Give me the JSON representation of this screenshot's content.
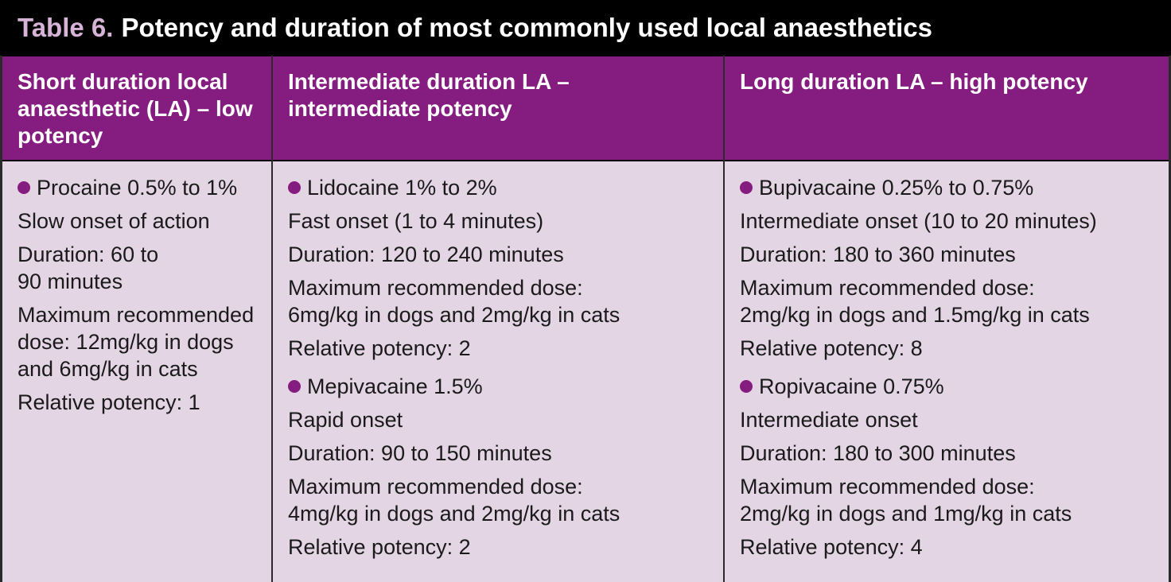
{
  "table": {
    "label": "Table 6.",
    "title": "Potency and duration of most commonly used local anaesthetics",
    "headers": [
      "Short duration local anaesthetic (LA) – low potency",
      "Intermediate duration LA – intermediate potency",
      "Long duration LA – high potency"
    ],
    "short": {
      "drug": "Procaine 0.5% to 1%",
      "onset": "Slow onset of action",
      "duration": "Duration: 60 to 90 minutes",
      "dose": "Maximum recommended dose: 12mg/kg in dogs and 6mg/kg in cats",
      "potency": "Relative potency: 1"
    },
    "intermediate": [
      {
        "drug": "Lidocaine 1% to 2%",
        "onset": "Fast onset (1 to 4 minutes)",
        "duration": "Duration: 120 to 240 minutes",
        "dose_label": "Maximum recommended dose:",
        "dose_value": "6mg/kg in dogs and 2mg/kg in cats",
        "potency": "Relative potency: 2"
      },
      {
        "drug": "Mepivacaine 1.5%",
        "onset": "Rapid onset",
        "duration": "Duration: 90 to 150 minutes",
        "dose_label": "Maximum recommended dose:",
        "dose_value": "4mg/kg in dogs and 2mg/kg in cats",
        "potency": "Relative potency: 2"
      }
    ],
    "long": [
      {
        "drug": "Bupivacaine 0.25% to 0.75%",
        "onset": "Intermediate onset (10 to 20 minutes)",
        "duration": "Duration: 180 to 360 minutes",
        "dose_label": "Maximum recommended dose:",
        "dose_value": "2mg/kg in dogs and 1.5mg/kg in cats",
        "potency": "Relative potency: 8"
      },
      {
        "drug": "Ropivacaine 0.75%",
        "onset": "Intermediate onset",
        "duration": "Duration: 180 to 300 minutes",
        "dose_label": "Maximum recommended dose:",
        "dose_value": "2mg/kg in dogs and 1mg/kg in cats",
        "potency": "Relative potency: 4"
      }
    ]
  },
  "colors": {
    "header_bg": "#851c7f",
    "body_bg": "#e3d5e4",
    "title_bg": "#000000",
    "label_color": "#d8b3d8",
    "bullet": "#851c7f"
  }
}
